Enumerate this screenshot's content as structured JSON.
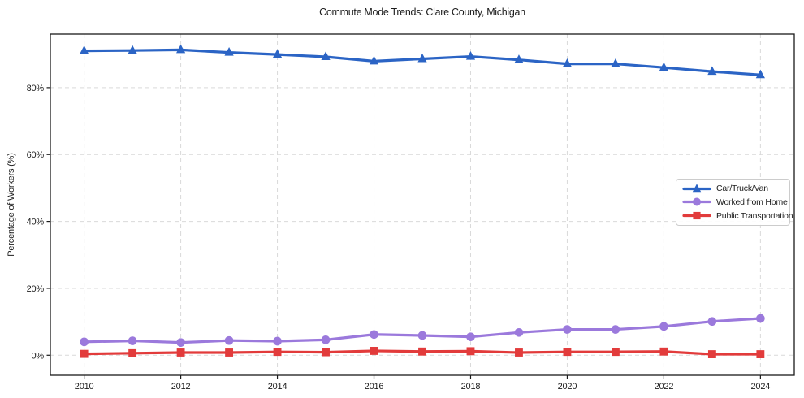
{
  "title": "Commute Mode Trends: Clare County, Michigan",
  "chart_data": {
    "type": "line",
    "title": "Commute Mode Trends: Clare County, Michigan",
    "xlabel": "",
    "ylabel": "Percentage of Workers (%)",
    "x": [
      2010,
      2011,
      2012,
      2013,
      2014,
      2015,
      2016,
      2017,
      2018,
      2019,
      2020,
      2021,
      2022,
      2023,
      2024
    ],
    "series": [
      {
        "name": "Car/Truck/Van",
        "color": "#2b64c5",
        "marker": "triangle",
        "values": [
          91.0,
          91.1,
          91.3,
          90.5,
          89.9,
          89.2,
          87.9,
          88.6,
          89.3,
          88.3,
          87.1,
          87.1,
          86.0,
          84.8,
          83.8
        ]
      },
      {
        "name": "Worked from Home",
        "color": "#9b79dc",
        "marker": "circle",
        "values": [
          4.0,
          4.3,
          3.8,
          4.4,
          4.2,
          4.6,
          6.2,
          5.9,
          5.5,
          6.8,
          7.7,
          7.7,
          8.6,
          10.1,
          11.0
        ]
      },
      {
        "name": "Public Transportation",
        "color": "#e23b3b",
        "marker": "square",
        "values": [
          0.4,
          0.6,
          0.8,
          0.8,
          1.0,
          0.9,
          1.3,
          1.1,
          1.2,
          0.8,
          1.0,
          1.0,
          1.1,
          0.3,
          0.3
        ]
      }
    ],
    "x_ticks": [
      2010,
      2012,
      2014,
      2016,
      2018,
      2020,
      2022,
      2024
    ],
    "y_ticks": [
      0,
      20,
      40,
      60,
      80
    ],
    "y_tick_suffix": "%",
    "xlim": [
      2009.3,
      2024.7
    ],
    "ylim": [
      -6,
      96
    ],
    "grid": true,
    "legend_position": "center right"
  }
}
